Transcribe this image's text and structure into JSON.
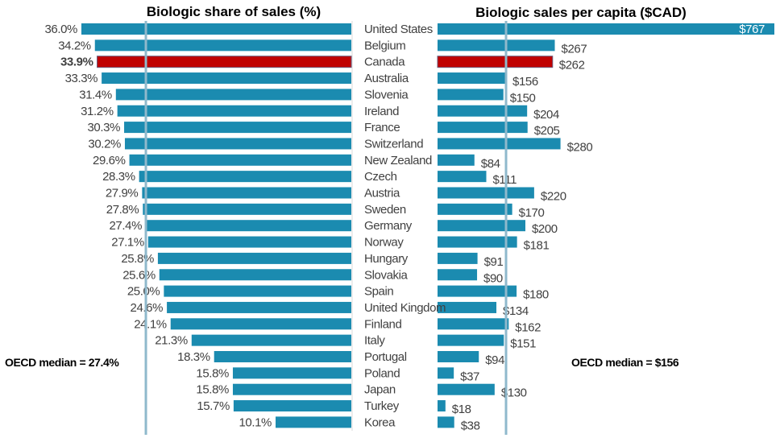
{
  "chart_data": [
    {
      "type": "bar",
      "orientation": "horizontal",
      "direction": "right-to-left",
      "title": "Biologic share of sales (%)",
      "categories": [
        "United States",
        "Belgium",
        "Canada",
        "Australia",
        "Slovenia",
        "Ireland",
        "France",
        "Switzerland",
        "New Zealand",
        "Czech",
        "Austria",
        "Sweden",
        "Germany",
        "Norway",
        "Hungary",
        "Slovakia",
        "Spain",
        "United Kingdom",
        "Finland",
        "Italy",
        "Portugal",
        "Poland",
        "Japan",
        "Turkey",
        "Korea"
      ],
      "values": [
        36.0,
        34.2,
        33.9,
        33.3,
        31.4,
        31.2,
        30.3,
        30.2,
        29.6,
        28.3,
        27.9,
        27.8,
        27.4,
        27.1,
        25.8,
        25.6,
        25.0,
        24.6,
        24.1,
        21.3,
        18.3,
        15.8,
        15.8,
        15.7,
        10.1
      ],
      "labels": [
        "36.0%",
        "34.2%",
        "33.9%",
        "33.3%",
        "31.4%",
        "31.2%",
        "30.3%",
        "30.2%",
        "29.6%",
        "28.3%",
        "27.9%",
        "27.8%",
        "27.4%",
        "27.1%",
        "25.8%",
        "25.6%",
        "25.0%",
        "24.6%",
        "24.1%",
        "21.3%",
        "18.3%",
        "15.8%",
        "15.8%",
        "15.7%",
        "10.1%"
      ],
      "highlight": "Canada",
      "median": 27.4,
      "median_label": "OECD median = 27.4%",
      "xlim": [
        0,
        36.0
      ],
      "grid": false,
      "xlabel": "",
      "ylabel": ""
    },
    {
      "type": "bar",
      "orientation": "horizontal",
      "direction": "left-to-right",
      "title": "Biologic sales per capita ($CAD)",
      "categories": [
        "United States",
        "Belgium",
        "Canada",
        "Australia",
        "Slovenia",
        "Ireland",
        "France",
        "Switzerland",
        "New Zealand",
        "Czech",
        "Austria",
        "Sweden",
        "Germany",
        "Norway",
        "Hungary",
        "Slovakia",
        "Spain",
        "United Kingdom",
        "Finland",
        "Italy",
        "Portugal",
        "Poland",
        "Japan",
        "Turkey",
        "Korea"
      ],
      "values": [
        767,
        267,
        262,
        156,
        150,
        204,
        205,
        280,
        84,
        111,
        220,
        170,
        200,
        181,
        91,
        90,
        180,
        134,
        162,
        151,
        94,
        37,
        130,
        18,
        38
      ],
      "labels": [
        "$767",
        "$267",
        "$262",
        "$156",
        "$150",
        "$204",
        "$205",
        "$280",
        "$84",
        "$111",
        "$220",
        "$170",
        "$200",
        "$181",
        "$91",
        "$90",
        "$180",
        "$134",
        "$162",
        "$151",
        "$94",
        "$37",
        "$130",
        "$18",
        "$38"
      ],
      "highlight": "Canada",
      "median": 156,
      "median_label": "OECD median = $156",
      "xlim": [
        0,
        767
      ],
      "grid": false,
      "xlabel": "",
      "ylabel": ""
    }
  ],
  "colors": {
    "bar": "#1b8bb0",
    "highlight": "#c00000",
    "median_line": "#8fb9cc",
    "label_text": "#404040"
  }
}
